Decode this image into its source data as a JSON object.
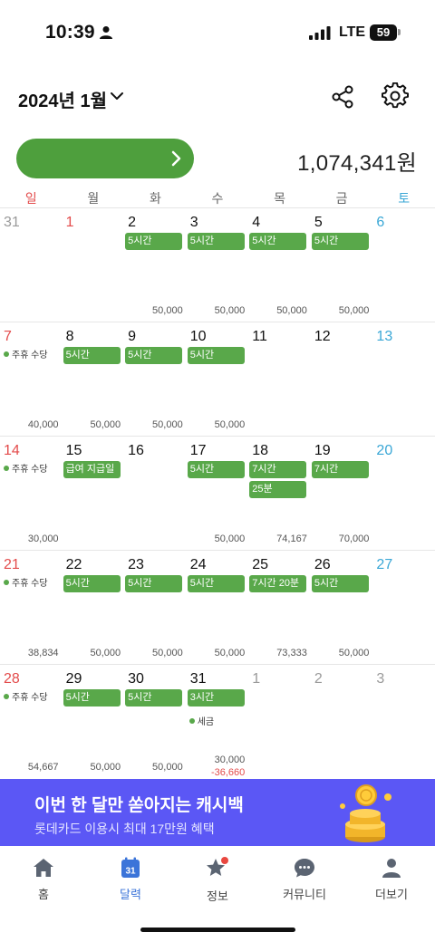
{
  "status_bar": {
    "time": "10:39",
    "network": "LTE",
    "battery": "59"
  },
  "header": {
    "month_title": "2024년 1월",
    "total_amount": "1,074,341원"
  },
  "weekdays": [
    "일",
    "월",
    "화",
    "수",
    "목",
    "금",
    "토"
  ],
  "weeks": [
    {
      "days": [
        {
          "day": "31",
          "type": "out",
          "chips": [],
          "amount": ""
        },
        {
          "day": "1",
          "type": "holiday-red",
          "chips": [],
          "amount": ""
        },
        {
          "day": "2",
          "type": "normal",
          "chips": [
            "5시간"
          ],
          "amount": "50,000"
        },
        {
          "day": "3",
          "type": "normal",
          "chips": [
            "5시간"
          ],
          "amount": "50,000"
        },
        {
          "day": "4",
          "type": "normal",
          "chips": [
            "5시간"
          ],
          "amount": "50,000"
        },
        {
          "day": "5",
          "type": "normal",
          "chips": [
            "5시간"
          ],
          "amount": "50,000"
        },
        {
          "day": "6",
          "type": "sat",
          "chips": [],
          "amount": ""
        }
      ]
    },
    {
      "days": [
        {
          "day": "7",
          "type": "sun",
          "chips": [],
          "note": "주휴 수당",
          "amount": "40,000"
        },
        {
          "day": "8",
          "type": "normal",
          "chips": [
            "5시간"
          ],
          "amount": "50,000"
        },
        {
          "day": "9",
          "type": "normal",
          "chips": [
            "5시간"
          ],
          "amount": "50,000"
        },
        {
          "day": "10",
          "type": "normal",
          "chips": [
            "5시간"
          ],
          "amount": "50,000"
        },
        {
          "day": "11",
          "type": "normal",
          "chips": [],
          "amount": ""
        },
        {
          "day": "12",
          "type": "normal",
          "chips": [],
          "amount": ""
        },
        {
          "day": "13",
          "type": "sat",
          "chips": [],
          "amount": ""
        }
      ]
    },
    {
      "days": [
        {
          "day": "14",
          "type": "sun",
          "chips": [],
          "note": "주휴 수당",
          "amount": "30,000"
        },
        {
          "day": "15",
          "type": "normal",
          "chips": [
            "급여 지급일"
          ],
          "amount": ""
        },
        {
          "day": "16",
          "type": "normal",
          "chips": [],
          "amount": ""
        },
        {
          "day": "17",
          "type": "normal",
          "chips": [
            "5시간"
          ],
          "amount": "50,000"
        },
        {
          "day": "18",
          "type": "normal",
          "chips": [
            "7시간",
            "25분"
          ],
          "amount": "74,167"
        },
        {
          "day": "19",
          "type": "normal",
          "chips": [
            "7시간"
          ],
          "amount": "70,000"
        },
        {
          "day": "20",
          "type": "sat",
          "chips": [],
          "amount": ""
        }
      ]
    },
    {
      "days": [
        {
          "day": "21",
          "type": "sun",
          "chips": [],
          "note": "주휴 수당",
          "amount": "38,834"
        },
        {
          "day": "22",
          "type": "normal",
          "chips": [
            "5시간"
          ],
          "amount": "50,000"
        },
        {
          "day": "23",
          "type": "normal",
          "chips": [
            "5시간"
          ],
          "amount": "50,000"
        },
        {
          "day": "24",
          "type": "normal",
          "chips": [
            "5시간"
          ],
          "amount": "50,000"
        },
        {
          "day": "25",
          "type": "normal",
          "chips": [
            "7시간 20분"
          ],
          "amount": "73,333"
        },
        {
          "day": "26",
          "type": "normal",
          "chips": [
            "5시간"
          ],
          "amount": "50,000"
        },
        {
          "day": "27",
          "type": "sat",
          "chips": [],
          "amount": ""
        }
      ]
    },
    {
      "days": [
        {
          "day": "28",
          "type": "sun",
          "chips": [],
          "note": "주휴 수당",
          "amount": "54,667"
        },
        {
          "day": "29",
          "type": "normal",
          "chips": [
            "5시간"
          ],
          "amount": "50,000"
        },
        {
          "day": "30",
          "type": "normal",
          "chips": [
            "5시간"
          ],
          "amount": "50,000"
        },
        {
          "day": "31",
          "type": "normal",
          "chips": [
            "3시간"
          ],
          "tax": "세금",
          "amount": "30,000",
          "amount2": "-36,660"
        },
        {
          "day": "1",
          "type": "out",
          "chips": [],
          "amount": ""
        },
        {
          "day": "2",
          "type": "out",
          "chips": [],
          "amount": ""
        },
        {
          "day": "3",
          "type": "out",
          "chips": [],
          "amount": ""
        }
      ]
    }
  ],
  "banner": {
    "title": "이번 한 달만 쏟아지는 캐시백",
    "subtitle": "롯데카드 이용시 최대 17만원 혜택"
  },
  "nav": {
    "items": [
      {
        "label": "홈",
        "icon": "home-icon"
      },
      {
        "label": "달력",
        "icon": "calendar-icon",
        "active": true,
        "badge_text": "31"
      },
      {
        "label": "정보",
        "icon": "star-icon",
        "notification_dot": true
      },
      {
        "label": "커뮤니티",
        "icon": "chat-bubble-icon"
      },
      {
        "label": "더보기",
        "icon": "person-icon"
      }
    ]
  },
  "colors": {
    "accent_green": "#4e9f3d",
    "chip_green": "#59a84a",
    "sunday_red": "#e34b4b",
    "saturday_blue": "#3aa7d6",
    "banner_purple": "#5b57f5",
    "nav_active_blue": "#3b74d9"
  }
}
